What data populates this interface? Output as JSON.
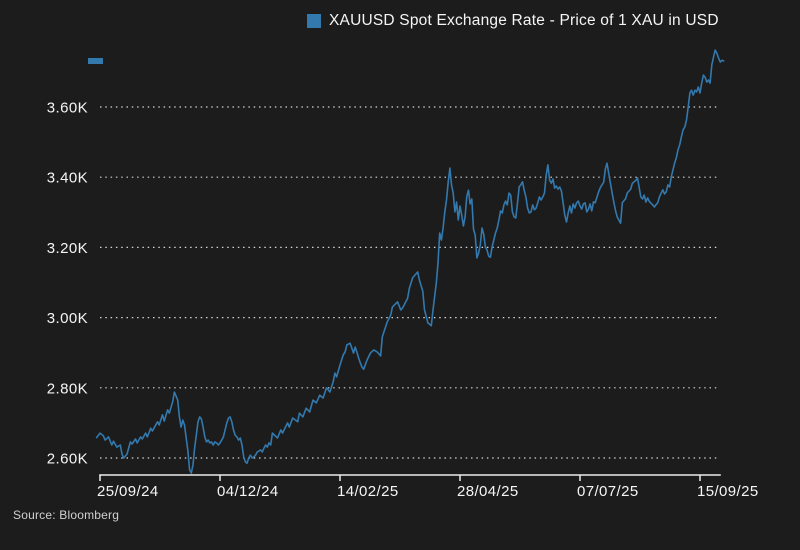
{
  "source": "Source: Bloomberg",
  "colors": {
    "background": "#1c1c1c",
    "line": "#3379ae",
    "legend_marker": "#3379ae",
    "last_value_marker": "#3379ae",
    "text": "#f5f5f5",
    "grid": "#d4d4d4",
    "axis": "#ececec",
    "source_text": "#d0d0d0"
  },
  "chart_data": {
    "type": "line",
    "title": "XAUUSD Spot Exchange Rate - Price of 1 XAU in USD",
    "legend": {
      "position": "top",
      "label": "XAUUSD Spot Exchange Rate - Price of 1 XAU in USD",
      "marker": "square"
    },
    "grid": "horizontal dotted",
    "xlabel": "",
    "ylabel": "",
    "x_tick_labels": [
      "25/09/24",
      "04/12/24",
      "14/02/25",
      "28/04/25",
      "07/07/25",
      "15/09/25"
    ],
    "x_tick_days": [
      0,
      71,
      142,
      213,
      284,
      355
    ],
    "x_range_days": [
      -2,
      369
    ],
    "y_ticks": [
      2600,
      2800,
      3000,
      3200,
      3400,
      3600
    ],
    "y_tick_labels": [
      "2.60K",
      "2.80K",
      "3.00K",
      "3.20K",
      "3.40K",
      "3.60K"
    ],
    "ylim": [
      2550,
      3780
    ],
    "series_name": "XAUUSD",
    "points": [
      [
        -2,
        2658
      ],
      [
        0,
        2671
      ],
      [
        2,
        2663
      ],
      [
        3,
        2651
      ],
      [
        5,
        2660
      ],
      [
        7,
        2637
      ],
      [
        8,
        2648
      ],
      [
        10,
        2631
      ],
      [
        12,
        2637
      ],
      [
        13,
        2611
      ],
      [
        14,
        2600
      ],
      [
        16,
        2611
      ],
      [
        18,
        2646
      ],
      [
        19,
        2640
      ],
      [
        21,
        2654
      ],
      [
        22,
        2643
      ],
      [
        24,
        2660
      ],
      [
        25,
        2654
      ],
      [
        27,
        2671
      ],
      [
        28,
        2660
      ],
      [
        30,
        2685
      ],
      [
        31,
        2677
      ],
      [
        34,
        2703
      ],
      [
        35,
        2694
      ],
      [
        37,
        2723
      ],
      [
        38,
        2705
      ],
      [
        40,
        2737
      ],
      [
        41,
        2728
      ],
      [
        43,
        2760
      ],
      [
        44,
        2788
      ],
      [
        46,
        2765
      ],
      [
        47,
        2717
      ],
      [
        48,
        2688
      ],
      [
        49,
        2708
      ],
      [
        50,
        2694
      ],
      [
        51,
        2657
      ],
      [
        52,
        2620
      ],
      [
        53,
        2566
      ],
      [
        54,
        2557
      ],
      [
        55,
        2580
      ],
      [
        56,
        2628
      ],
      [
        57,
        2665
      ],
      [
        58,
        2703
      ],
      [
        59,
        2717
      ],
      [
        60,
        2711
      ],
      [
        61,
        2688
      ],
      [
        62,
        2660
      ],
      [
        63,
        2646
      ],
      [
        64,
        2651
      ],
      [
        65,
        2643
      ],
      [
        66,
        2646
      ],
      [
        67,
        2637
      ],
      [
        68,
        2646
      ],
      [
        69,
        2643
      ],
      [
        70,
        2637
      ],
      [
        71,
        2643
      ],
      [
        72,
        2651
      ],
      [
        73,
        2660
      ],
      [
        74,
        2680
      ],
      [
        75,
        2700
      ],
      [
        76,
        2714
      ],
      [
        77,
        2717
      ],
      [
        78,
        2703
      ],
      [
        79,
        2680
      ],
      [
        80,
        2665
      ],
      [
        81,
        2660
      ],
      [
        82,
        2651
      ],
      [
        83,
        2657
      ],
      [
        84,
        2637
      ],
      [
        85,
        2603
      ],
      [
        86,
        2589
      ],
      [
        87,
        2585
      ],
      [
        88,
        2600
      ],
      [
        89,
        2608
      ],
      [
        90,
        2600
      ],
      [
        91,
        2603
      ],
      [
        92,
        2608
      ],
      [
        93,
        2617
      ],
      [
        95,
        2623
      ],
      [
        96,
        2617
      ],
      [
        97,
        2628
      ],
      [
        98,
        2637
      ],
      [
        99,
        2631
      ],
      [
        100,
        2643
      ],
      [
        101,
        2637
      ],
      [
        102,
        2671
      ],
      [
        105,
        2657
      ],
      [
        107,
        2680
      ],
      [
        108,
        2671
      ],
      [
        111,
        2700
      ],
      [
        112,
        2688
      ],
      [
        114,
        2714
      ],
      [
        117,
        2703
      ],
      [
        118,
        2728
      ],
      [
        120,
        2717
      ],
      [
        122,
        2742
      ],
      [
        124,
        2731
      ],
      [
        126,
        2765
      ],
      [
        128,
        2757
      ],
      [
        130,
        2779
      ],
      [
        132,
        2771
      ],
      [
        134,
        2800
      ],
      [
        136,
        2788
      ],
      [
        138,
        2817
      ],
      [
        139,
        2842
      ],
      [
        140,
        2831
      ],
      [
        142,
        2865
      ],
      [
        144,
        2895
      ],
      [
        145,
        2902
      ],
      [
        146,
        2922
      ],
      [
        148,
        2927
      ],
      [
        149,
        2913
      ],
      [
        150,
        2899
      ],
      [
        151,
        2916
      ],
      [
        152,
        2902
      ],
      [
        153,
        2885
      ],
      [
        154,
        2871
      ],
      [
        155,
        2859
      ],
      [
        156,
        2853
      ],
      [
        158,
        2879
      ],
      [
        160,
        2899
      ],
      [
        162,
        2908
      ],
      [
        164,
        2902
      ],
      [
        166,
        2891
      ],
      [
        167,
        2945
      ],
      [
        170,
        2988
      ],
      [
        172,
        3007
      ],
      [
        173,
        3030
      ],
      [
        176,
        3045
      ],
      [
        178,
        3022
      ],
      [
        179,
        3027
      ],
      [
        182,
        3055
      ],
      [
        183,
        3083
      ],
      [
        185,
        3114
      ],
      [
        188,
        3130
      ],
      [
        189,
        3107
      ],
      [
        191,
        3075
      ],
      [
        192,
        3022
      ],
      [
        194,
        2985
      ],
      [
        196,
        2977
      ],
      [
        197,
        3022
      ],
      [
        199,
        3098
      ],
      [
        200,
        3156
      ],
      [
        201,
        3241
      ],
      [
        202,
        3221
      ],
      [
        203,
        3255
      ],
      [
        204,
        3301
      ],
      [
        205,
        3335
      ],
      [
        206,
        3386
      ],
      [
        207,
        3426
      ],
      [
        208,
        3378
      ],
      [
        209,
        3355
      ],
      [
        210,
        3301
      ],
      [
        211,
        3329
      ],
      [
        212,
        3278
      ],
      [
        213,
        3318
      ],
      [
        214,
        3292
      ],
      [
        215,
        3261
      ],
      [
        216,
        3287
      ],
      [
        217,
        3346
      ],
      [
        218,
        3363
      ],
      [
        219,
        3324
      ],
      [
        220,
        3338
      ],
      [
        221,
        3252
      ],
      [
        222,
        3235
      ],
      [
        223,
        3170
      ],
      [
        224,
        3184
      ],
      [
        225,
        3207
      ],
      [
        226,
        3255
      ],
      [
        227,
        3238
      ],
      [
        228,
        3201
      ],
      [
        229,
        3193
      ],
      [
        230,
        3175
      ],
      [
        231,
        3172
      ],
      [
        232,
        3201
      ],
      [
        233,
        3221
      ],
      [
        234,
        3241
      ],
      [
        235,
        3255
      ],
      [
        236,
        3278
      ],
      [
        237,
        3304
      ],
      [
        238,
        3298
      ],
      [
        239,
        3321
      ],
      [
        240,
        3332
      ],
      [
        241,
        3321
      ],
      [
        242,
        3355
      ],
      [
        243,
        3349
      ],
      [
        244,
        3301
      ],
      [
        245,
        3287
      ],
      [
        246,
        3284
      ],
      [
        247,
        3327
      ],
      [
        248,
        3373
      ],
      [
        249,
        3378
      ],
      [
        250,
        3387
      ],
      [
        251,
        3363
      ],
      [
        252,
        3344
      ],
      [
        253,
        3312
      ],
      [
        254,
        3298
      ],
      [
        255,
        3301
      ],
      [
        256,
        3321
      ],
      [
        257,
        3307
      ],
      [
        258,
        3312
      ],
      [
        259,
        3327
      ],
      [
        260,
        3344
      ],
      [
        261,
        3335
      ],
      [
        262,
        3344
      ],
      [
        263,
        3355
      ],
      [
        264,
        3406
      ],
      [
        265,
        3435
      ],
      [
        266,
        3392
      ],
      [
        267,
        3383
      ],
      [
        268,
        3395
      ],
      [
        269,
        3369
      ],
      [
        270,
        3375
      ],
      [
        271,
        3366
      ],
      [
        272,
        3372
      ],
      [
        273,
        3361
      ],
      [
        274,
        3327
      ],
      [
        275,
        3292
      ],
      [
        276,
        3272
      ],
      [
        277,
        3298
      ],
      [
        278,
        3318
      ],
      [
        279,
        3298
      ],
      [
        280,
        3324
      ],
      [
        281,
        3312
      ],
      [
        282,
        3327
      ],
      [
        283,
        3332
      ],
      [
        284,
        3318
      ],
      [
        285,
        3309
      ],
      [
        286,
        3324
      ],
      [
        287,
        3327
      ],
      [
        288,
        3301
      ],
      [
        289,
        3309
      ],
      [
        290,
        3324
      ],
      [
        291,
        3304
      ],
      [
        292,
        3330
      ],
      [
        293,
        3327
      ],
      [
        295,
        3358
      ],
      [
        296,
        3370
      ],
      [
        298,
        3386
      ],
      [
        299,
        3424
      ],
      [
        300,
        3440
      ],
      [
        302,
        3383
      ],
      [
        304,
        3329
      ],
      [
        305,
        3305
      ],
      [
        306,
        3287
      ],
      [
        308,
        3269
      ],
      [
        309,
        3327
      ],
      [
        311,
        3339
      ],
      [
        312,
        3355
      ],
      [
        314,
        3366
      ],
      [
        315,
        3383
      ],
      [
        317,
        3391
      ],
      [
        318,
        3398
      ],
      [
        320,
        3344
      ],
      [
        321,
        3338
      ],
      [
        322,
        3349
      ],
      [
        323,
        3329
      ],
      [
        324,
        3341
      ],
      [
        325,
        3331
      ],
      [
        327,
        3321
      ],
      [
        328,
        3315
      ],
      [
        329,
        3322
      ],
      [
        330,
        3327
      ],
      [
        331,
        3344
      ],
      [
        333,
        3364
      ],
      [
        334,
        3352
      ],
      [
        335,
        3358
      ],
      [
        336,
        3378
      ],
      [
        337,
        3372
      ],
      [
        338,
        3401
      ],
      [
        339,
        3421
      ],
      [
        340,
        3440
      ],
      [
        341,
        3455
      ],
      [
        342,
        3478
      ],
      [
        343,
        3492
      ],
      [
        344,
        3515
      ],
      [
        345,
        3535
      ],
      [
        346,
        3543
      ],
      [
        347,
        3563
      ],
      [
        348,
        3600
      ],
      [
        349,
        3640
      ],
      [
        350,
        3648
      ],
      [
        351,
        3634
      ],
      [
        352,
        3648
      ],
      [
        353,
        3643
      ],
      [
        354,
        3657
      ],
      [
        355,
        3640
      ],
      [
        356,
        3668
      ],
      [
        357,
        3691
      ],
      [
        358,
        3685
      ],
      [
        359,
        3671
      ],
      [
        360,
        3677
      ],
      [
        361,
        3668
      ],
      [
        362,
        3720
      ],
      [
        363,
        3742
      ],
      [
        364,
        3762
      ],
      [
        365,
        3753
      ],
      [
        366,
        3739
      ],
      [
        367,
        3728
      ],
      [
        368,
        3733
      ],
      [
        369,
        3731
      ]
    ]
  }
}
